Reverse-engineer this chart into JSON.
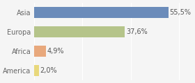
{
  "categories": [
    "Asia",
    "Europa",
    "Africa",
    "America"
  ],
  "values": [
    55.5,
    37.6,
    4.9,
    2.0
  ],
  "labels": [
    "55,5%",
    "37,6%",
    "4,9%",
    "2,0%"
  ],
  "bar_colors": [
    "#6b8cba",
    "#b5c48a",
    "#e8a87c",
    "#e8d87c"
  ],
  "background_color": "#f5f5f5",
  "xlim": [
    0,
    65
  ],
  "label_fontsize": 7,
  "tick_fontsize": 7
}
